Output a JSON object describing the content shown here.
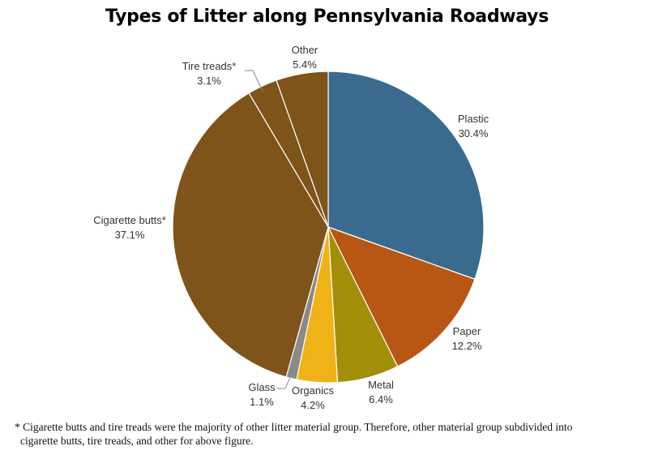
{
  "chart_data": {
    "type": "pie",
    "title": "Types of Litter along Pennsylvania Roadways",
    "start_angle_deg": 0,
    "direction": "clockwise",
    "slices": [
      {
        "label": "Plastic",
        "value": 30.4,
        "value_label": "30.4%",
        "color": "#3a6b8f"
      },
      {
        "label": "Paper",
        "value": 12.2,
        "value_label": "12.2%",
        "color": "#b85614"
      },
      {
        "label": "Metal",
        "value": 6.4,
        "value_label": "6.4%",
        "color": "#a38e07"
      },
      {
        "label": "Organics",
        "value": 4.2,
        "value_label": "4.2%",
        "color": "#efb217"
      },
      {
        "label": "Glass",
        "value": 1.1,
        "value_label": "1.1%",
        "color": "#8a8a8a"
      },
      {
        "label": "Cigarette butts*",
        "value": 37.1,
        "value_label": "37.1%",
        "color": "#7e541b"
      },
      {
        "label": "Tire treads*",
        "value": 3.1,
        "value_label": "3.1%",
        "color": "#7e541b"
      },
      {
        "label": "Other",
        "value": 5.4,
        "value_label": "5.4%",
        "color": "#7e541b"
      }
    ]
  },
  "footnote": {
    "line1": "* Cigarette butts and tire treads were the majority of other litter material group. Therefore, other material group subdivided into",
    "line2": "cigarette butts, tire treads, and other for above figure."
  }
}
